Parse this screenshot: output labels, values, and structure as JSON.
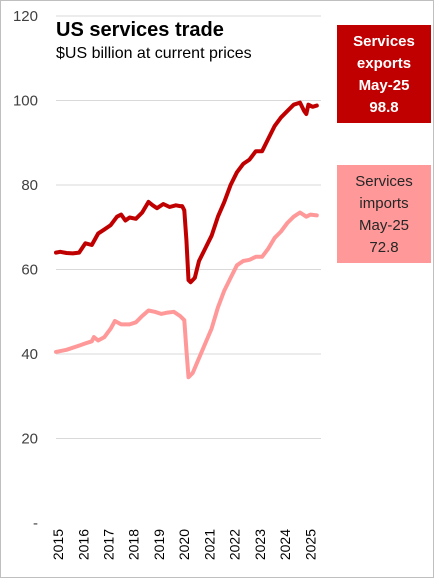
{
  "chart_data": {
    "type": "line",
    "title": "US services trade",
    "subtitle": "$US billion at current prices",
    "xlabel": "",
    "ylabel": "",
    "xlim": [
      2015.0,
      2025.5
    ],
    "ylim": [
      0,
      120
    ],
    "yticks": [
      {
        "value": 0,
        "label": "-"
      },
      {
        "value": 20,
        "label": "20"
      },
      {
        "value": 40,
        "label": "40"
      },
      {
        "value": 60,
        "label": "60"
      },
      {
        "value": 80,
        "label": "80"
      },
      {
        "value": 100,
        "label": "100"
      },
      {
        "value": 120,
        "label": "120"
      }
    ],
    "xticks": [
      "2015",
      "2016",
      "2017",
      "2018",
      "2019",
      "2020",
      "2021",
      "2022",
      "2023",
      "2024",
      "2025"
    ],
    "grid": "horizontal",
    "legend": "callout boxes at right",
    "colors": {
      "exports": "#c00000",
      "imports": "#ff9999",
      "grid": "#d9d9d9"
    },
    "series": [
      {
        "name": "Services exports",
        "color": "#c00000",
        "points": [
          [
            "2015-01",
            64.0
          ],
          [
            "2015-03",
            64.2
          ],
          [
            "2015-06",
            63.9
          ],
          [
            "2015-09",
            63.8
          ],
          [
            "2015-12",
            64.0
          ],
          [
            "2016-03",
            66.2
          ],
          [
            "2016-06",
            65.8
          ],
          [
            "2016-09",
            68.5
          ],
          [
            "2016-12",
            69.5
          ],
          [
            "2017-03",
            70.5
          ],
          [
            "2017-06",
            72.5
          ],
          [
            "2017-08",
            73.0
          ],
          [
            "2017-10",
            71.6
          ],
          [
            "2017-12",
            72.3
          ],
          [
            "2018-03",
            72.0
          ],
          [
            "2018-06",
            73.5
          ],
          [
            "2018-09",
            76.0
          ],
          [
            "2018-11",
            75.2
          ],
          [
            "2019-01",
            74.5
          ],
          [
            "2019-04",
            75.5
          ],
          [
            "2019-07",
            74.8
          ],
          [
            "2019-10",
            75.2
          ],
          [
            "2019-12",
            75.0
          ],
          [
            "2020-01",
            75.0
          ],
          [
            "2020-02",
            74.0
          ],
          [
            "2020-03",
            67.0
          ],
          [
            "2020-04",
            57.5
          ],
          [
            "2020-05",
            57.0
          ],
          [
            "2020-07",
            58.0
          ],
          [
            "2020-09",
            62.0
          ],
          [
            "2020-12",
            65.0
          ],
          [
            "2021-03",
            68.0
          ],
          [
            "2021-06",
            72.5
          ],
          [
            "2021-09",
            76.0
          ],
          [
            "2021-12",
            80.0
          ],
          [
            "2022-03",
            83.0
          ],
          [
            "2022-06",
            85.0
          ],
          [
            "2022-09",
            86.0
          ],
          [
            "2022-12",
            88.0
          ],
          [
            "2023-03",
            88.0
          ],
          [
            "2023-06",
            91.0
          ],
          [
            "2023-09",
            94.0
          ],
          [
            "2023-12",
            96.0
          ],
          [
            "2024-03",
            97.5
          ],
          [
            "2024-06",
            99.0
          ],
          [
            "2024-09",
            99.5
          ],
          [
            "2024-11",
            97.5
          ],
          [
            "2024-12",
            96.8
          ],
          [
            "2025-01",
            99.0
          ],
          [
            "2025-03",
            98.5
          ],
          [
            "2025-05",
            98.8
          ]
        ]
      },
      {
        "name": "Services imports",
        "color": "#ff9999",
        "points": [
          [
            "2015-01",
            40.5
          ],
          [
            "2015-06",
            41.0
          ],
          [
            "2015-12",
            42.0
          ],
          [
            "2016-03",
            42.5
          ],
          [
            "2016-06",
            43.0
          ],
          [
            "2016-07",
            44.0
          ],
          [
            "2016-09",
            43.2
          ],
          [
            "2016-12",
            44.0
          ],
          [
            "2017-03",
            46.0
          ],
          [
            "2017-05",
            47.8
          ],
          [
            "2017-08",
            47.0
          ],
          [
            "2017-12",
            47.0
          ],
          [
            "2018-03",
            47.5
          ],
          [
            "2018-06",
            49.0
          ],
          [
            "2018-09",
            50.3
          ],
          [
            "2018-12",
            50.0
          ],
          [
            "2019-03",
            49.5
          ],
          [
            "2019-06",
            49.8
          ],
          [
            "2019-09",
            50.0
          ],
          [
            "2019-12",
            49.0
          ],
          [
            "2020-02",
            48.0
          ],
          [
            "2020-03",
            41.0
          ],
          [
            "2020-04",
            34.5
          ],
          [
            "2020-06",
            35.5
          ],
          [
            "2020-09",
            39.0
          ],
          [
            "2020-12",
            42.5
          ],
          [
            "2021-03",
            46.0
          ],
          [
            "2021-06",
            51.0
          ],
          [
            "2021-09",
            55.0
          ],
          [
            "2021-12",
            58.0
          ],
          [
            "2022-03",
            61.0
          ],
          [
            "2022-06",
            62.0
          ],
          [
            "2022-09",
            62.3
          ],
          [
            "2022-12",
            63.0
          ],
          [
            "2023-03",
            63.0
          ],
          [
            "2023-06",
            65.0
          ],
          [
            "2023-09",
            67.5
          ],
          [
            "2023-12",
            69.0
          ],
          [
            "2024-03",
            71.0
          ],
          [
            "2024-06",
            72.5
          ],
          [
            "2024-09",
            73.5
          ],
          [
            "2024-12",
            72.5
          ],
          [
            "2025-02",
            73.0
          ],
          [
            "2025-05",
            72.8
          ]
        ]
      }
    ],
    "callouts": {
      "exports": {
        "line1": "Services",
        "line2": "exports",
        "line3": "May-25",
        "value": "98.8"
      },
      "imports": {
        "line1": "Services",
        "line2": "imports",
        "line3": "May-25",
        "value": "72.8"
      }
    }
  }
}
